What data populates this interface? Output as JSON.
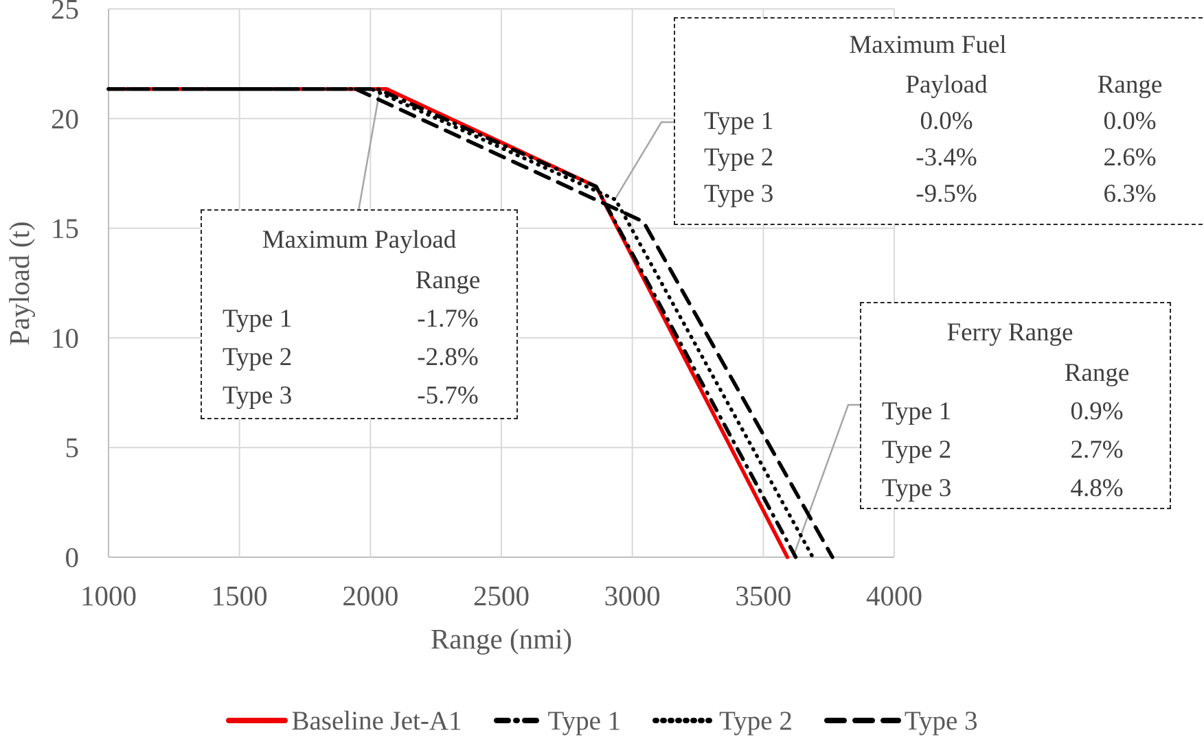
{
  "chart_data": {
    "type": "line",
    "title": "",
    "xlabel": "Range (nmi)",
    "ylabel": "Payload (t)",
    "xlim": [
      1000,
      4000
    ],
    "ylim": [
      0,
      25
    ],
    "xticks": [
      1000,
      1500,
      2000,
      2500,
      3000,
      3500,
      4000
    ],
    "yticks": [
      0,
      5,
      10,
      15,
      20,
      25
    ],
    "grid": true,
    "legend_position": "bottom",
    "series": [
      {
        "name": "Baseline Jet-A1",
        "color": "#ee0000",
        "style": "solid",
        "points": [
          [
            1000,
            21.35
          ],
          [
            2062,
            21.35
          ],
          [
            2862,
            16.9
          ],
          [
            3592,
            0
          ]
        ]
      },
      {
        "name": "Type 1",
        "color": "#000000",
        "style": "dash-dot",
        "points": [
          [
            1000,
            21.35
          ],
          [
            2027,
            21.35
          ],
          [
            2862,
            16.9
          ],
          [
            3624,
            0
          ]
        ]
      },
      {
        "name": "Type 2",
        "color": "#000000",
        "style": "dot",
        "points": [
          [
            1000,
            21.35
          ],
          [
            2004,
            21.35
          ],
          [
            2936,
            16.3
          ],
          [
            3689,
            0
          ]
        ]
      },
      {
        "name": "Type 3",
        "color": "#000000",
        "style": "dash",
        "points": [
          [
            1000,
            21.35
          ],
          [
            1944,
            21.35
          ],
          [
            3042,
            15.3
          ],
          [
            3764,
            0
          ]
        ]
      }
    ]
  },
  "annotations": {
    "max_payload": {
      "title": "Maximum Payload",
      "range_header": "Range",
      "rows": [
        {
          "label": "Type 1",
          "range": "-1.7%"
        },
        {
          "label": "Type 2",
          "range": "-2.8%"
        },
        {
          "label": "Type 3",
          "range": "-5.7%"
        }
      ]
    },
    "max_fuel": {
      "title": "Maximum Fuel",
      "payload_header": "Payload",
      "range_header": "Range",
      "rows": [
        {
          "label": "Type 1",
          "payload": "0.0%",
          "range": "0.0%"
        },
        {
          "label": "Type 2",
          "payload": "-3.4%",
          "range": "2.6%"
        },
        {
          "label": "Type 3",
          "payload": "-9.5%",
          "range": "6.3%"
        }
      ]
    },
    "ferry_range": {
      "title": "Ferry Range",
      "range_header": "Range",
      "rows": [
        {
          "label": "Type 1",
          "range": "0.9%"
        },
        {
          "label": "Type 2",
          "range": "2.7%"
        },
        {
          "label": "Type 3",
          "range": "4.8%"
        }
      ]
    }
  },
  "colors": {
    "baseline_line": "#ee0000",
    "alt_line": "#000000",
    "gridline": "#d9d9d9",
    "axis_line": "#bfbfbf",
    "leader_line": "#a6a6a6",
    "axis_text": "#595959",
    "callout_text": "#3f3f3f"
  }
}
